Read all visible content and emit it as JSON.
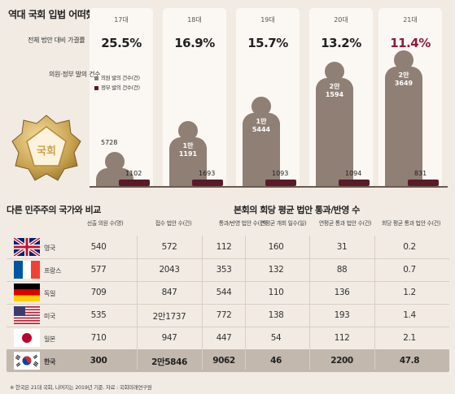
{
  "title": "역대 국회 입법 어떠했나",
  "rate_label": "전체 법안 대비 가결률",
  "count_label": "의원·정부 발의 건수",
  "legend": {
    "member": "의원 발의 건수(건)",
    "government": "정부 발의 건수(건)"
  },
  "colors": {
    "member": "#8f7f75",
    "government": "#5a1a2a",
    "highlight": "#8b1c3c"
  },
  "emblem_text": "국회",
  "chart_data": {
    "type": "bar",
    "categories": [
      "17대",
      "18대",
      "19대",
      "20대",
      "21대"
    ],
    "pass_rate": [
      "25.5%",
      "16.9%",
      "15.7%",
      "13.2%",
      "11.4%"
    ],
    "pass_rate_values": [
      25.5,
      16.9,
      15.7,
      13.2,
      11.4
    ],
    "series": [
      {
        "name": "의원 발의 건수(건)",
        "values": [
          5728,
          11191,
          15444,
          21594,
          23649
        ]
      },
      {
        "name": "정부 발의 건수(건)",
        "values": [
          1102,
          1693,
          1093,
          1094,
          831
        ]
      }
    ],
    "member_labels": [
      "5728",
      "1만\n1191",
      "1만\n5444",
      "2만\n1594",
      "2만\n3649"
    ],
    "gov_labels": [
      "1102",
      "1693",
      "1093",
      "1094",
      "831"
    ]
  },
  "compare_title": "다른 민주주의 국가와 비교",
  "session_title": "본회의 회당 평균 법안 통과/반영 수",
  "columns": [
    "선출 의원 수(명)",
    "접수 법안 수(건)",
    "통과/반영 법안 수(건)",
    "연평균 개회 일수(일)",
    "연평균 통과 법안 수(건)",
    "회당 평균 통과 법안 수(건)"
  ],
  "rows": [
    {
      "flag": "uk",
      "country": "영국",
      "values": [
        "540",
        "572",
        "112",
        "160",
        "31",
        "0.2"
      ]
    },
    {
      "flag": "fr",
      "country": "프랑스",
      "values": [
        "577",
        "2043",
        "353",
        "132",
        "88",
        "0.7"
      ]
    },
    {
      "flag": "de",
      "country": "독일",
      "values": [
        "709",
        "847",
        "544",
        "110",
        "136",
        "1.2"
      ]
    },
    {
      "flag": "us",
      "country": "미국",
      "values": [
        "535",
        "2만1737",
        "772",
        "138",
        "193",
        "1.4"
      ]
    },
    {
      "flag": "jp",
      "country": "일본",
      "values": [
        "710",
        "947",
        "447",
        "54",
        "112",
        "2.1"
      ]
    },
    {
      "flag": "kr",
      "country": "한국",
      "values": [
        "300",
        "2만5846",
        "9062",
        "46",
        "2200",
        "47.8"
      ]
    }
  ],
  "footnote": "※ 한국은 21대 국회, 나머지는 2019년 기준. 자료 : 국회미래연구원"
}
